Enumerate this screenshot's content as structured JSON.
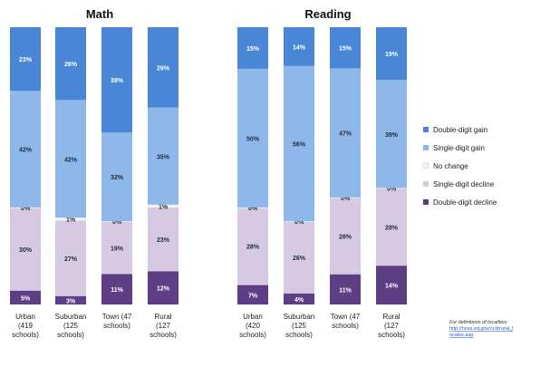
{
  "chart_data": [
    {
      "type": "bar",
      "stacked": true,
      "title": "Math",
      "categories": [
        "Urban (419 schools)",
        "Suburban (125 schools)",
        "Town (47 schools)",
        "Rural (127 schools)"
      ],
      "series": [
        {
          "name": "Double-digit decline",
          "values": [
            5,
            3,
            11,
            12
          ],
          "labels": [
            "5%",
            "3%",
            "11%",
            "12%"
          ]
        },
        {
          "name": "Single-digit decline",
          "values": [
            30,
            27,
            19,
            23
          ],
          "labels": [
            "30%",
            "27%",
            "19%",
            "23%"
          ]
        },
        {
          "name": "No change",
          "values": [
            0,
            1,
            0,
            1
          ],
          "labels": [
            "0%",
            "1%",
            "0%",
            "1%"
          ]
        },
        {
          "name": "Single-digit gain",
          "values": [
            42,
            42,
            32,
            35
          ],
          "labels": [
            "42%",
            "42%",
            "32%",
            "35%"
          ]
        },
        {
          "name": "Double-digit gain",
          "values": [
            23,
            26,
            38,
            29
          ],
          "labels": [
            "23%",
            "26%",
            "38%",
            "29%"
          ]
        }
      ]
    },
    {
      "type": "bar",
      "stacked": true,
      "title": "Reading",
      "categories": [
        "Urban (420 schools)",
        "Suburban (125 schools)",
        "Town (47 schools)",
        "Rural (127 schools)"
      ],
      "series": [
        {
          "name": "Double-digit decline",
          "values": [
            7,
            4,
            11,
            14
          ],
          "labels": [
            "7%",
            "4%",
            "11%",
            "14%"
          ]
        },
        {
          "name": "Single-digit decline",
          "values": [
            28,
            26,
            28,
            28
          ],
          "labels": [
            "28%",
            "26%",
            "28%",
            "28%"
          ]
        },
        {
          "name": "No change",
          "values": [
            0,
            0,
            0,
            0
          ],
          "labels": [
            "0%",
            "0%",
            "0%",
            "0%"
          ]
        },
        {
          "name": "Single-digit gain",
          "values": [
            50,
            56,
            47,
            39
          ],
          "labels": [
            "50%",
            "56%",
            "47%",
            "39%"
          ]
        },
        {
          "name": "Double-digit gain",
          "values": [
            15,
            14,
            15,
            19
          ],
          "labels": [
            "15%",
            "14%",
            "15%",
            "19%"
          ]
        }
      ]
    }
  ],
  "category_lines": [
    [
      [
        "Urban",
        "(419",
        "schools)"
      ],
      [
        "Suburban",
        "(125",
        "schools)"
      ],
      [
        "Town (47",
        "schools)"
      ],
      [
        "Rural",
        "(127",
        "schools)"
      ]
    ],
    [
      [
        "Urban",
        "(420",
        "schools)"
      ],
      [
        "Suburban",
        "(125",
        "schools)"
      ],
      [
        "Town (47",
        "schools)"
      ],
      [
        "Rural",
        "(127",
        "schools)"
      ]
    ]
  ],
  "legend": {
    "position": "right",
    "items": [
      {
        "name": "Double-digit gain",
        "color": "#4a86d6"
      },
      {
        "name": "Single-digit gain",
        "color": "#8fb8ea"
      },
      {
        "name": "No change",
        "color": "#f3f3f3"
      },
      {
        "name": "Single-digit decline",
        "color": "#d8c9e3"
      },
      {
        "name": "Double-digit decline",
        "color": "#5e3f86"
      }
    ]
  },
  "note": {
    "text": "For definitions of localities:",
    "link_lines": [
      "http://nces.ed.gov/ccd/rural_l",
      "ocales.asp"
    ]
  },
  "colors": {
    "Double-digit gain": "#4a86d6",
    "Single-digit gain": "#8fb8ea",
    "No change": "#f3f3f3",
    "Single-digit decline": "#d8c9e3",
    "Double-digit decline": "#5e3f86",
    "label_light": "#ffffff",
    "label_dark": "#1e2a3a",
    "link": "#2a55c8"
  }
}
